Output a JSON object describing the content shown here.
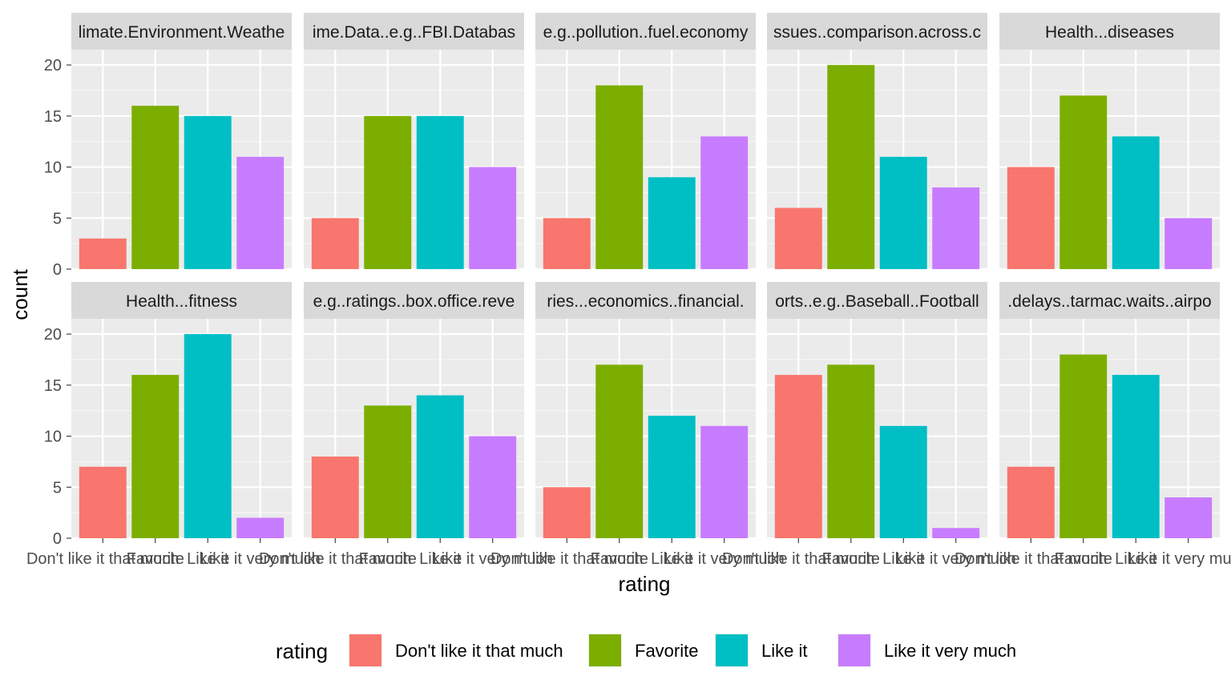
{
  "chart_data": {
    "type": "bar",
    "categories": [
      "Don't like it that much",
      "Favorite",
      "Like it",
      "Like it very much"
    ],
    "colors": [
      "#F8766D",
      "#7CAE00",
      "#00BFC4",
      "#C77CFF"
    ],
    "ylabel": "count",
    "xlabel": "rating",
    "ylim": [
      0,
      21.5
    ],
    "yticks": [
      0,
      5,
      10,
      15,
      20
    ],
    "ytick_labels": [
      "0",
      "5",
      "10",
      "15",
      "20"
    ],
    "grid": true,
    "legend_position": "bottom",
    "legend_title": "rating",
    "facets": [
      {
        "title": "limate.Environment.Weathe",
        "values": [
          3,
          16,
          15,
          11
        ]
      },
      {
        "title": "ime.Data..e.g..FBI.Databas",
        "values": [
          5,
          15,
          15,
          10
        ]
      },
      {
        "title": "e.g..pollution..fuel.economy",
        "values": [
          5,
          18,
          9,
          13
        ]
      },
      {
        "title": "ssues..comparison.across.c",
        "values": [
          6,
          20,
          11,
          8
        ]
      },
      {
        "title": "Health...diseases",
        "values": [
          10,
          17,
          13,
          5
        ]
      },
      {
        "title": "Health...fitness",
        "values": [
          7,
          16,
          20,
          2
        ]
      },
      {
        "title": "e.g..ratings..box.office.reve",
        "values": [
          8,
          13,
          14,
          10
        ]
      },
      {
        "title": "ries...economics..financial.",
        "values": [
          5,
          17,
          12,
          11
        ]
      },
      {
        "title": "orts..e.g..Baseball..Football",
        "values": [
          16,
          17,
          11,
          1
        ]
      },
      {
        "title": ".delays..tarmac.waits..airpo",
        "values": [
          7,
          18,
          16,
          4
        ]
      }
    ]
  }
}
